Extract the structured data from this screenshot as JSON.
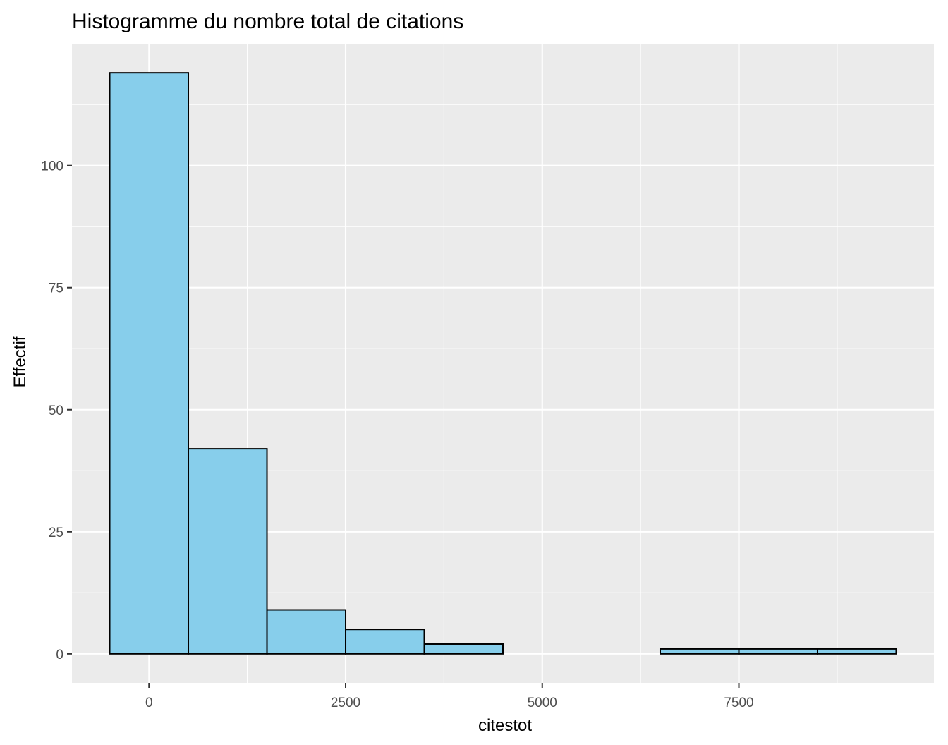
{
  "chart_data": {
    "type": "bar",
    "title": "Histogramme du nombre total de citations",
    "xlabel": "citestot",
    "ylabel": "Effectif",
    "bin_width": 1000,
    "bins": [
      {
        "x_start": -500,
        "x_end": 500,
        "count": 119
      },
      {
        "x_start": 500,
        "x_end": 1500,
        "count": 42
      },
      {
        "x_start": 1500,
        "x_end": 2500,
        "count": 9
      },
      {
        "x_start": 2500,
        "x_end": 3500,
        "count": 5
      },
      {
        "x_start": 3500,
        "x_end": 4500,
        "count": 2
      },
      {
        "x_start": 4500,
        "x_end": 5500,
        "count": 0
      },
      {
        "x_start": 5500,
        "x_end": 6500,
        "count": 0
      },
      {
        "x_start": 6500,
        "x_end": 7500,
        "count": 1
      },
      {
        "x_start": 7500,
        "x_end": 8500,
        "count": 1
      },
      {
        "x_start": 8500,
        "x_end": 9500,
        "count": 1
      }
    ],
    "xlim": [
      -980,
      9980
    ],
    "ylim": [
      -5.95,
      124.95
    ],
    "x_ticks": [
      0,
      2500,
      5000,
      7500
    ],
    "x_tick_labels": [
      "0",
      "2500",
      "5000",
      "7500"
    ],
    "y_ticks": [
      0,
      25,
      50,
      75,
      100
    ],
    "y_tick_labels": [
      "0",
      "25",
      "50",
      "75",
      "100"
    ],
    "grid": true,
    "legend": "none",
    "colors": {
      "bar_fill": "#87CEEB",
      "bar_stroke": "#000000",
      "panel": "#EBEBEB",
      "grid": "#FFFFFF"
    }
  }
}
